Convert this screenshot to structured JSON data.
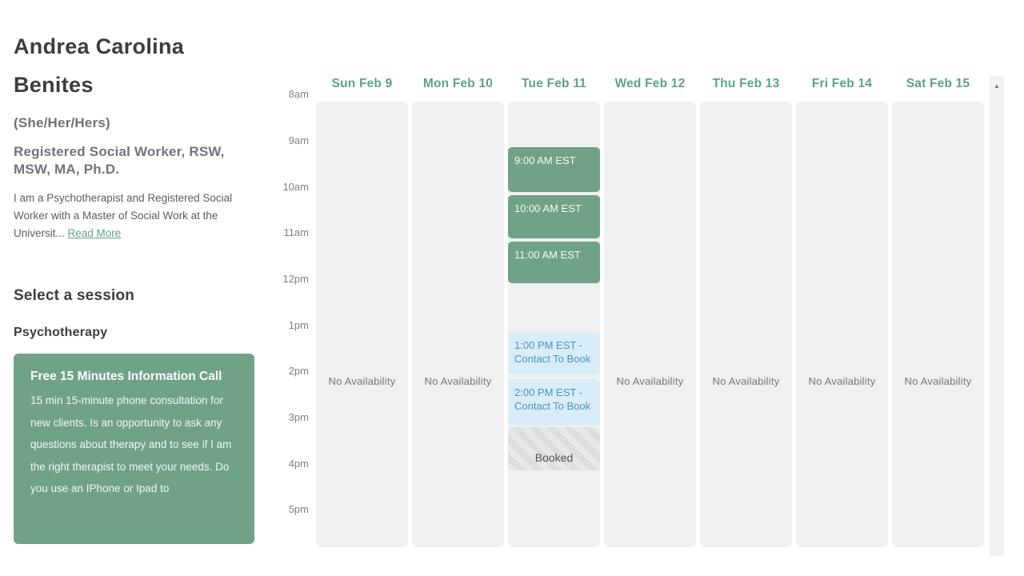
{
  "profile": {
    "name": "Andrea Carolina Benites",
    "pronouns": "(She/Her/Hers)",
    "credentials": "Registered Social Worker, RSW, MSW, MA, Ph.D.",
    "bio_truncated": "I am a Psychotherapist and Registered Social Worker with a Master of Social Work at the Universit... ",
    "read_more_label": "Read More"
  },
  "session": {
    "heading": "Select a session",
    "category": "Psychotherapy",
    "card": {
      "title": "Free 15 Minutes Information Call",
      "description": "15 min 15-minute phone consultation for new clients. Is an opportunity to ask any questions about therapy and to see if I am the right therapist to meet your needs. Do you use an IPhone or Ipad to"
    }
  },
  "calendar": {
    "time_labels": [
      "8am",
      "9am",
      "10am",
      "11am",
      "12pm",
      "1pm",
      "2pm",
      "3pm",
      "4pm",
      "5pm"
    ],
    "days": [
      {
        "label": "Sun Feb 9",
        "status": "No Availability",
        "slots": []
      },
      {
        "label": "Mon Feb 10",
        "status": "No Availability",
        "slots": []
      },
      {
        "label": "Tue Feb 11",
        "status": "",
        "slots": [
          {
            "label": "9:00 AM EST",
            "type": "available"
          },
          {
            "label": "10:00 AM EST",
            "type": "available"
          },
          {
            "label": "11:00 AM EST",
            "type": "available"
          },
          {
            "label": "1:00 PM EST - Contact To Book",
            "type": "contact"
          },
          {
            "label": "2:00 PM EST - Contact To Book",
            "type": "contact"
          },
          {
            "label": "Booked",
            "type": "booked"
          }
        ]
      },
      {
        "label": "Wed Feb 12",
        "status": "No Availability",
        "slots": []
      },
      {
        "label": "Thu Feb 13",
        "status": "No Availability",
        "slots": []
      },
      {
        "label": "Fri Feb 14",
        "status": "No Availability",
        "slots": []
      },
      {
        "label": "Sat Feb 15",
        "status": "No Availability",
        "slots": []
      }
    ]
  },
  "icons": {
    "scroll_up": "▲"
  },
  "colors": {
    "accent_green": "#6fa287",
    "header_green": "#5ca28d",
    "contact_blue_bg": "#d9edf9",
    "contact_blue_text": "#4b92bd",
    "column_gray": "#f0f0f0",
    "booked_text": "#51515d"
  }
}
